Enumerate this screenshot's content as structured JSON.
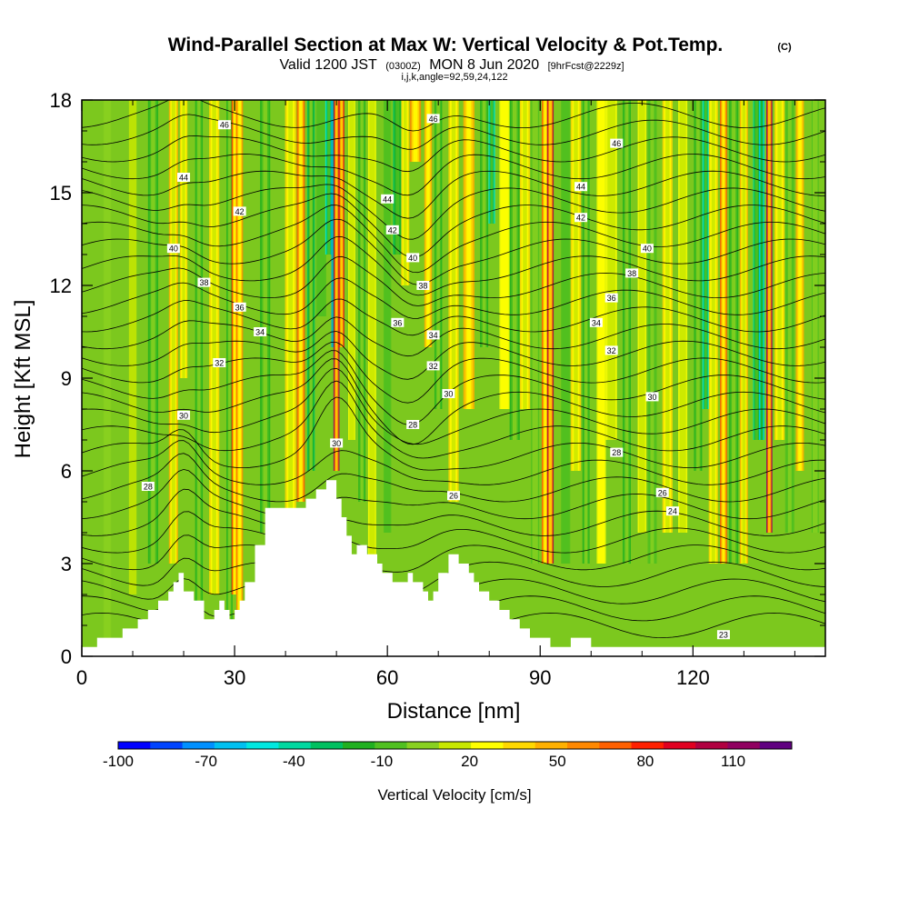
{
  "title": {
    "main": "Wind-Parallel Section at Max W: Vertical Velocity & Pot.Temp.",
    "copyright": "(C)",
    "valid_prefix": "Valid 1200 JST",
    "valid_z": "(0300Z)",
    "valid_date": "MON 8 Jun 2020",
    "forecast": "[9hrFcst@2229z]",
    "params": "i,j,k,angle=92,59,24,122"
  },
  "chart_data": {
    "type": "heatmap",
    "xlabel": "Distance [nm]",
    "ylabel": "Height [Kft MSL]",
    "xlim": [
      0,
      146
    ],
    "ylim": [
      0,
      18
    ],
    "x_ticks": [
      0,
      30,
      60,
      90,
      120
    ],
    "y_ticks": [
      0,
      3,
      6,
      9,
      12,
      15,
      18
    ],
    "x_tick_labels": [
      "0",
      "30",
      "60",
      "90",
      "120"
    ],
    "y_tick_labels": [
      "0",
      "3",
      "6",
      "9",
      "12",
      "15",
      "18"
    ],
    "colorbar": {
      "label": "Vertical Velocity [cm/s]",
      "min": -100,
      "max": 130,
      "step": 10,
      "tick_values": [
        -100,
        -70,
        -40,
        -10,
        20,
        50,
        80,
        110
      ],
      "tick_labels": [
        "-100",
        "-70",
        "-40",
        "-10",
        "20",
        "50",
        "80",
        "110"
      ],
      "colors": [
        "#0000ff",
        "#0044ff",
        "#0090ff",
        "#00c0f0",
        "#00e8e0",
        "#00d8a0",
        "#00c060",
        "#20b020",
        "#50c020",
        "#88d020",
        "#c8e800",
        "#ffff00",
        "#ffd800",
        "#ffb000",
        "#ff8800",
        "#ff6000",
        "#ff2000",
        "#e00020",
        "#b00040",
        "#900060",
        "#600080"
      ]
    },
    "terrain": {
      "x": [
        0,
        3,
        3,
        8,
        8,
        11,
        11,
        13,
        13,
        15,
        15,
        17,
        17,
        18,
        18,
        19,
        19,
        20,
        20,
        22,
        22,
        24,
        24,
        26,
        26,
        27,
        27,
        28,
        28,
        29,
        29,
        30,
        30,
        31,
        31,
        32,
        32,
        34,
        34,
        36,
        36,
        44,
        44,
        46,
        46,
        48,
        48,
        50,
        50,
        51,
        51,
        52,
        52,
        53,
        53,
        54,
        54,
        56,
        56,
        58,
        58,
        59,
        59,
        61,
        61,
        64,
        64,
        65,
        65,
        67,
        67,
        68,
        68,
        69,
        69,
        70,
        70,
        72,
        72,
        74,
        74,
        76,
        76,
        77,
        77,
        78,
        78,
        80,
        80,
        82,
        82,
        84,
        84,
        86,
        86,
        88,
        88,
        92,
        92,
        96,
        96,
        100,
        100,
        146
      ],
      "h": [
        0.3,
        0.3,
        0.6,
        0.6,
        0.9,
        0.9,
        1.2,
        1.2,
        1.5,
        1.5,
        1.8,
        1.8,
        2.1,
        2.1,
        2.4,
        2.4,
        2.7,
        2.7,
        2.1,
        2.1,
        1.8,
        1.8,
        1.2,
        1.2,
        1.5,
        1.5,
        1.8,
        1.8,
        1.5,
        1.5,
        1.2,
        1.2,
        1.5,
        1.5,
        1.8,
        1.8,
        2.4,
        2.4,
        3.6,
        3.6,
        4.8,
        4.8,
        5.1,
        5.1,
        5.4,
        5.4,
        5.7,
        5.7,
        5.1,
        5.1,
        4.5,
        4.5,
        3.9,
        3.9,
        3.3,
        3.3,
        3.6,
        3.6,
        3.3,
        3.3,
        3.0,
        3.0,
        2.7,
        2.7,
        2.4,
        2.4,
        2.7,
        2.7,
        2.4,
        2.4,
        2.1,
        2.1,
        1.8,
        1.8,
        2.1,
        2.1,
        2.7,
        2.7,
        3.3,
        3.3,
        3.0,
        3.0,
        2.7,
        2.7,
        2.4,
        2.4,
        2.1,
        2.1,
        1.8,
        1.8,
        1.5,
        1.5,
        1.2,
        1.2,
        0.9,
        0.9,
        0.6,
        0.6,
        0.3,
        0.3,
        0.6,
        0.6,
        0.3,
        0.3
      ]
    },
    "theta_contour_labels": [
      {
        "v": "46",
        "x": 28,
        "h": 17.2
      },
      {
        "v": "46",
        "x": 69,
        "h": 17.4
      },
      {
        "v": "46",
        "x": 105,
        "h": 16.6
      },
      {
        "v": "44",
        "x": 20,
        "h": 15.5
      },
      {
        "v": "44",
        "x": 60,
        "h": 14.8
      },
      {
        "v": "44",
        "x": 98,
        "h": 15.2
      },
      {
        "v": "42",
        "x": 31,
        "h": 14.4
      },
      {
        "v": "42",
        "x": 61,
        "h": 13.8
      },
      {
        "v": "42",
        "x": 98,
        "h": 14.2
      },
      {
        "v": "40",
        "x": 18,
        "h": 13.2
      },
      {
        "v": "40",
        "x": 65,
        "h": 12.9
      },
      {
        "v": "40",
        "x": 111,
        "h": 13.2
      },
      {
        "v": "38",
        "x": 24,
        "h": 12.1
      },
      {
        "v": "38",
        "x": 67,
        "h": 12.0
      },
      {
        "v": "38",
        "x": 108,
        "h": 12.4
      },
      {
        "v": "36",
        "x": 31,
        "h": 11.3
      },
      {
        "v": "36",
        "x": 62,
        "h": 10.8
      },
      {
        "v": "36",
        "x": 104,
        "h": 11.6
      },
      {
        "v": "34",
        "x": 35,
        "h": 10.5
      },
      {
        "v": "34",
        "x": 69,
        "h": 10.4
      },
      {
        "v": "34",
        "x": 101,
        "h": 10.8
      },
      {
        "v": "32",
        "x": 27,
        "h": 9.5
      },
      {
        "v": "32",
        "x": 69,
        "h": 9.4
      },
      {
        "v": "32",
        "x": 104,
        "h": 9.9
      },
      {
        "v": "30",
        "x": 20,
        "h": 7.8
      },
      {
        "v": "30",
        "x": 50,
        "h": 6.9
      },
      {
        "v": "30",
        "x": 72,
        "h": 8.5
      },
      {
        "v": "30",
        "x": 112,
        "h": 8.4
      },
      {
        "v": "28",
        "x": 13,
        "h": 5.5
      },
      {
        "v": "28",
        "x": 65,
        "h": 7.5
      },
      {
        "v": "28",
        "x": 105,
        "h": 6.6
      },
      {
        "v": "26",
        "x": 73,
        "h": 5.2
      },
      {
        "v": "26",
        "x": 114,
        "h": 5.3
      },
      {
        "v": "24",
        "x": 116,
        "h": 4.7
      },
      {
        "v": "23",
        "x": 126,
        "h": 0.7
      }
    ]
  }
}
